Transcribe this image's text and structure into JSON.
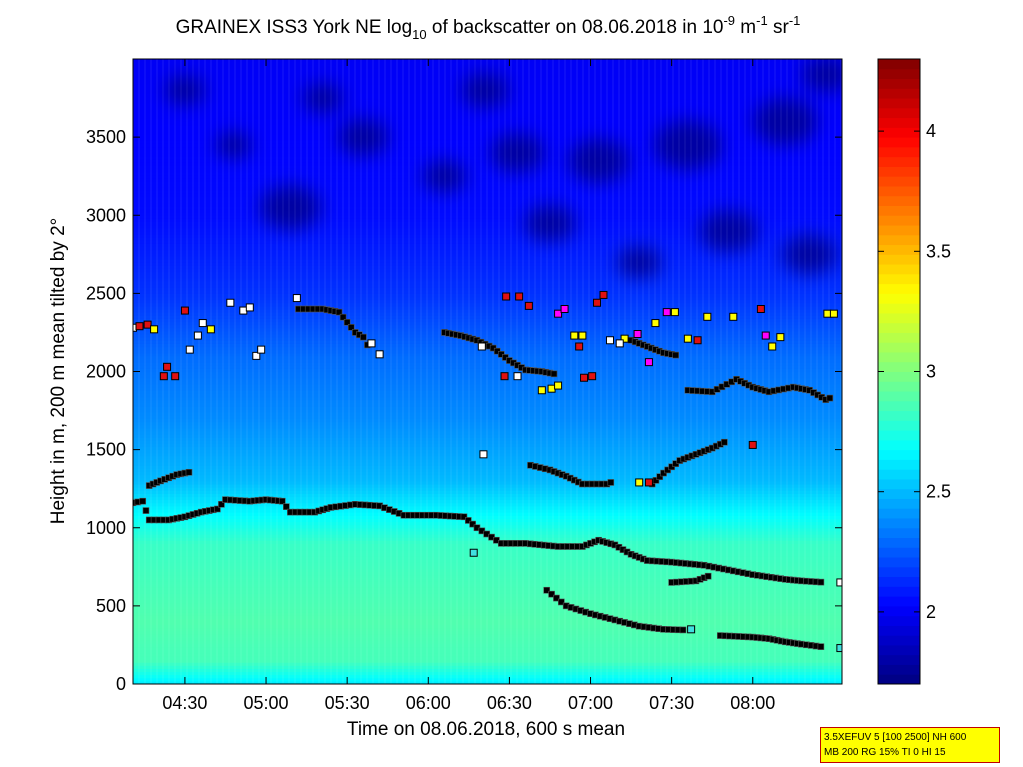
{
  "chart_data": {
    "type": "heatmap",
    "title": {
      "prefix": "GRAINEX ISS3 York NE log",
      "sub": "10",
      "middle": " of backscatter on 08.06.2018 in 10",
      "sup1": "-9",
      "unit_m": " m",
      "sup2": "-1",
      "unit_sr": " sr",
      "sup3": "-1"
    },
    "xlabel": "Time on 08.06.2018, 600 s mean",
    "ylabel": "Height in m, 200 m mean tilted by 2°",
    "x_range_hours": [
      4.18,
      8.55
    ],
    "ylim": [
      0,
      4000
    ],
    "x_ticks": [
      {
        "value": 4.5,
        "label": "04:30"
      },
      {
        "value": 5.0,
        "label": "05:00"
      },
      {
        "value": 5.5,
        "label": "05:30"
      },
      {
        "value": 6.0,
        "label": "06:00"
      },
      {
        "value": 6.5,
        "label": "06:30"
      },
      {
        "value": 7.0,
        "label": "07:00"
      },
      {
        "value": 7.5,
        "label": "07:30"
      },
      {
        "value": 8.0,
        "label": "08:00"
      }
    ],
    "y_ticks": [
      {
        "value": 0,
        "label": "0"
      },
      {
        "value": 500,
        "label": "500"
      },
      {
        "value": 1000,
        "label": "1000"
      },
      {
        "value": 1500,
        "label": "1500"
      },
      {
        "value": 2000,
        "label": "2000"
      },
      {
        "value": 2500,
        "label": "2500"
      },
      {
        "value": 3000,
        "label": "3000"
      },
      {
        "value": 3500,
        "label": "3500"
      }
    ],
    "colorbar": {
      "range": [
        1.7,
        4.3
      ],
      "ticks": [
        {
          "value": 2.0,
          "label": "2"
        },
        {
          "value": 2.5,
          "label": "2.5"
        },
        {
          "value": 3.0,
          "label": "3"
        },
        {
          "value": 3.5,
          "label": "3.5"
        },
        {
          "value": 4.0,
          "label": "4"
        }
      ],
      "colormap": "jet"
    },
    "field_profile": [
      {
        "h": 0,
        "v": 2.62
      },
      {
        "h": 150,
        "v": 2.85
      },
      {
        "h": 400,
        "v": 2.88
      },
      {
        "h": 900,
        "v": 2.82
      },
      {
        "h": 1050,
        "v": 2.7
      },
      {
        "h": 1300,
        "v": 2.5
      },
      {
        "h": 1700,
        "v": 2.38
      },
      {
        "h": 2100,
        "v": 2.3
      },
      {
        "h": 2500,
        "v": 2.15
      },
      {
        "h": 3000,
        "v": 2.05
      },
      {
        "h": 4000,
        "v": 2.0
      }
    ],
    "dark_patches": [
      {
        "t": 4.8,
        "h": 3450,
        "r": 110
      },
      {
        "t": 5.15,
        "h": 3050,
        "r": 180
      },
      {
        "t": 5.6,
        "h": 3500,
        "r": 150
      },
      {
        "t": 6.1,
        "h": 3250,
        "r": 130
      },
      {
        "t": 6.55,
        "h": 3400,
        "r": 160
      },
      {
        "t": 6.75,
        "h": 2950,
        "r": 150
      },
      {
        "t": 7.05,
        "h": 3350,
        "r": 180
      },
      {
        "t": 7.3,
        "h": 2700,
        "r": 130
      },
      {
        "t": 7.6,
        "h": 3450,
        "r": 200
      },
      {
        "t": 7.85,
        "h": 2900,
        "r": 170
      },
      {
        "t": 8.2,
        "h": 3600,
        "r": 190
      },
      {
        "t": 8.35,
        "h": 2750,
        "r": 160
      },
      {
        "t": 5.35,
        "h": 3750,
        "r": 120
      },
      {
        "t": 6.35,
        "h": 3800,
        "r": 140
      },
      {
        "t": 4.5,
        "h": 3800,
        "r": 120
      },
      {
        "t": 8.45,
        "h": 3900,
        "r": 140
      }
    ],
    "layers": [
      {
        "name": "mixed-layer-lower",
        "points": [
          [
            4.18,
            1160
          ],
          [
            4.24,
            1170
          ],
          [
            4.28,
            1050
          ],
          [
            4.4,
            1050
          ],
          [
            4.5,
            1070
          ],
          [
            4.6,
            1100
          ],
          [
            4.7,
            1120
          ],
          [
            4.75,
            1180
          ],
          [
            4.9,
            1170
          ],
          [
            5.0,
            1180
          ],
          [
            5.1,
            1170
          ],
          [
            5.15,
            1100
          ],
          [
            5.3,
            1100
          ],
          [
            5.4,
            1130
          ],
          [
            5.55,
            1150
          ],
          [
            5.7,
            1140
          ],
          [
            5.85,
            1080
          ],
          [
            6.05,
            1080
          ],
          [
            6.22,
            1070
          ],
          [
            6.3,
            1000
          ],
          [
            6.45,
            900
          ],
          [
            6.6,
            900
          ],
          [
            6.8,
            880
          ],
          [
            6.95,
            880
          ],
          [
            7.05,
            920
          ],
          [
            7.15,
            890
          ],
          [
            7.25,
            830
          ],
          [
            7.35,
            790
          ],
          [
            7.5,
            780
          ],
          [
            7.7,
            760
          ],
          [
            7.85,
            730
          ],
          [
            8.0,
            700
          ],
          [
            8.2,
            670
          ],
          [
            8.3,
            660
          ],
          [
            8.45,
            650
          ]
        ]
      },
      {
        "name": "mixed-layer-upper",
        "points": [
          [
            4.28,
            1270
          ],
          [
            4.35,
            1300
          ],
          [
            4.45,
            1340
          ],
          [
            4.55,
            1360
          ]
        ]
      },
      {
        "name": "lower-layer",
        "points": [
          [
            6.73,
            600
          ],
          [
            6.85,
            500
          ],
          [
            7.0,
            450
          ],
          [
            7.15,
            410
          ],
          [
            7.3,
            370
          ],
          [
            7.45,
            350
          ],
          [
            7.6,
            345
          ]
        ]
      },
      {
        "name": "lower-layer-2",
        "points": [
          [
            7.8,
            310
          ],
          [
            8.0,
            300
          ],
          [
            8.1,
            290
          ],
          [
            8.2,
            270
          ],
          [
            8.3,
            255
          ],
          [
            8.45,
            235
          ]
        ]
      },
      {
        "name": "mid-layer",
        "points": [
          [
            7.5,
            650
          ],
          [
            7.65,
            660
          ],
          [
            7.75,
            700
          ]
        ]
      },
      {
        "name": "residual-layer-a",
        "points": [
          [
            6.63,
            1400
          ],
          [
            6.75,
            1370
          ],
          [
            6.85,
            1330
          ],
          [
            6.95,
            1280
          ],
          [
            7.1,
            1280
          ],
          [
            7.15,
            1300
          ]
        ]
      },
      {
        "name": "residual-layer-b",
        "points": [
          [
            7.38,
            1280
          ],
          [
            7.45,
            1350
          ],
          [
            7.55,
            1430
          ],
          [
            7.65,
            1470
          ],
          [
            7.75,
            1510
          ],
          [
            7.85,
            1560
          ]
        ]
      },
      {
        "name": "upper-layer-1",
        "points": [
          [
            5.2,
            2400
          ],
          [
            5.35,
            2400
          ],
          [
            5.45,
            2380
          ],
          [
            5.55,
            2250
          ],
          [
            5.6,
            2220
          ],
          [
            5.65,
            2120
          ]
        ]
      },
      {
        "name": "upper-layer-2",
        "points": [
          [
            6.1,
            2250
          ],
          [
            6.2,
            2230
          ],
          [
            6.3,
            2200
          ],
          [
            6.4,
            2150
          ],
          [
            6.5,
            2070
          ],
          [
            6.6,
            2010
          ],
          [
            6.7,
            2000
          ],
          [
            6.8,
            1980
          ]
        ]
      },
      {
        "name": "upper-layer-3",
        "points": [
          [
            7.6,
            1880
          ],
          [
            7.75,
            1870
          ],
          [
            7.9,
            1950
          ],
          [
            8.0,
            1900
          ],
          [
            8.1,
            1870
          ],
          [
            8.25,
            1900
          ],
          [
            8.35,
            1880
          ],
          [
            8.45,
            1820
          ],
          [
            8.5,
            1840
          ]
        ]
      },
      {
        "name": "upper-layer-4",
        "points": [
          [
            7.25,
            2200
          ],
          [
            7.35,
            2160
          ],
          [
            7.45,
            2120
          ],
          [
            7.55,
            2100
          ]
        ]
      }
    ],
    "scatter_markers": [
      {
        "t": 4.18,
        "h": 2280,
        "c": "white"
      },
      {
        "t": 4.22,
        "h": 2290,
        "c": "red"
      },
      {
        "t": 4.27,
        "h": 2300,
        "c": "red"
      },
      {
        "t": 4.31,
        "h": 2270,
        "c": "yellow"
      },
      {
        "t": 4.39,
        "h": 2030,
        "c": "red"
      },
      {
        "t": 4.37,
        "h": 1970,
        "c": "red"
      },
      {
        "t": 4.44,
        "h": 1970,
        "c": "red"
      },
      {
        "t": 4.5,
        "h": 2390,
        "c": "red"
      },
      {
        "t": 4.53,
        "h": 2140,
        "c": "white"
      },
      {
        "t": 4.58,
        "h": 2230,
        "c": "white"
      },
      {
        "t": 4.61,
        "h": 2310,
        "c": "white"
      },
      {
        "t": 4.66,
        "h": 2270,
        "c": "yellow"
      },
      {
        "t": 4.78,
        "h": 2440,
        "c": "white"
      },
      {
        "t": 4.86,
        "h": 2390,
        "c": "white"
      },
      {
        "t": 4.9,
        "h": 2410,
        "c": "white"
      },
      {
        "t": 4.94,
        "h": 2100,
        "c": "white"
      },
      {
        "t": 4.97,
        "h": 2140,
        "c": "white"
      },
      {
        "t": 5.19,
        "h": 2470,
        "c": "white"
      },
      {
        "t": 6.48,
        "h": 2480,
        "c": "red"
      },
      {
        "t": 6.56,
        "h": 2480,
        "c": "red"
      },
      {
        "t": 6.62,
        "h": 2420,
        "c": "red"
      },
      {
        "t": 6.8,
        "h": 2370,
        "c": "magenta"
      },
      {
        "t": 6.84,
        "h": 2400,
        "c": "magenta"
      },
      {
        "t": 6.9,
        "h": 2230,
        "c": "yellow"
      },
      {
        "t": 6.95,
        "h": 2230,
        "c": "yellow"
      },
      {
        "t": 6.93,
        "h": 2160,
        "c": "red"
      },
      {
        "t": 7.04,
        "h": 2440,
        "c": "red"
      },
      {
        "t": 7.08,
        "h": 2490,
        "c": "red"
      },
      {
        "t": 7.21,
        "h": 2210,
        "c": "yellow"
      },
      {
        "t": 7.29,
        "h": 2240,
        "c": "magenta"
      },
      {
        "t": 7.36,
        "h": 2060,
        "c": "magenta"
      },
      {
        "t": 7.4,
        "h": 2310,
        "c": "yellow"
      },
      {
        "t": 7.47,
        "h": 2380,
        "c": "magenta"
      },
      {
        "t": 7.52,
        "h": 2380,
        "c": "yellow"
      },
      {
        "t": 7.6,
        "h": 2210,
        "c": "yellow"
      },
      {
        "t": 7.66,
        "h": 2200,
        "c": "red"
      },
      {
        "t": 7.72,
        "h": 2350,
        "c": "yellow"
      },
      {
        "t": 7.88,
        "h": 2350,
        "c": "yellow"
      },
      {
        "t": 8.05,
        "h": 2400,
        "c": "red"
      },
      {
        "t": 8.08,
        "h": 2230,
        "c": "magenta"
      },
      {
        "t": 8.12,
        "h": 2160,
        "c": "yellow"
      },
      {
        "t": 8.17,
        "h": 2220,
        "c": "yellow"
      },
      {
        "t": 8.46,
        "h": 2370,
        "c": "yellow"
      },
      {
        "t": 8.5,
        "h": 2370,
        "c": "yellow"
      },
      {
        "t": 6.7,
        "h": 1880,
        "c": "yellow"
      },
      {
        "t": 6.76,
        "h": 1890,
        "c": "yellow"
      },
      {
        "t": 6.8,
        "h": 1910,
        "c": "yellow"
      },
      {
        "t": 6.96,
        "h": 1960,
        "c": "red"
      },
      {
        "t": 7.01,
        "h": 1970,
        "c": "red"
      },
      {
        "t": 6.47,
        "h": 1970,
        "c": "red"
      },
      {
        "t": 6.55,
        "h": 1970,
        "c": "white"
      },
      {
        "t": 6.34,
        "h": 1470,
        "c": "white"
      },
      {
        "t": 7.3,
        "h": 1290,
        "c": "yellow"
      },
      {
        "t": 7.36,
        "h": 1290,
        "c": "red"
      },
      {
        "t": 8.0,
        "h": 1530,
        "c": "red"
      },
      {
        "t": 6.28,
        "h": 840,
        "c": "cyan"
      },
      {
        "t": 5.65,
        "h": 2180,
        "c": "white"
      },
      {
        "t": 5.7,
        "h": 2110,
        "c": "white"
      },
      {
        "t": 6.33,
        "h": 2160,
        "c": "white"
      },
      {
        "t": 7.62,
        "h": 350,
        "c": "cyan"
      },
      {
        "t": 8.54,
        "h": 230,
        "c": "cyan"
      },
      {
        "t": 8.54,
        "h": 650,
        "c": "white"
      },
      {
        "t": 7.18,
        "h": 2180,
        "c": "white"
      },
      {
        "t": 7.12,
        "h": 2200,
        "c": "white"
      }
    ]
  },
  "infobox": {
    "line1": "3.5XEFUV 5 [100 2500] NH 600",
    "line2": "MB 200 RG 15% TI 0 HI 15"
  }
}
